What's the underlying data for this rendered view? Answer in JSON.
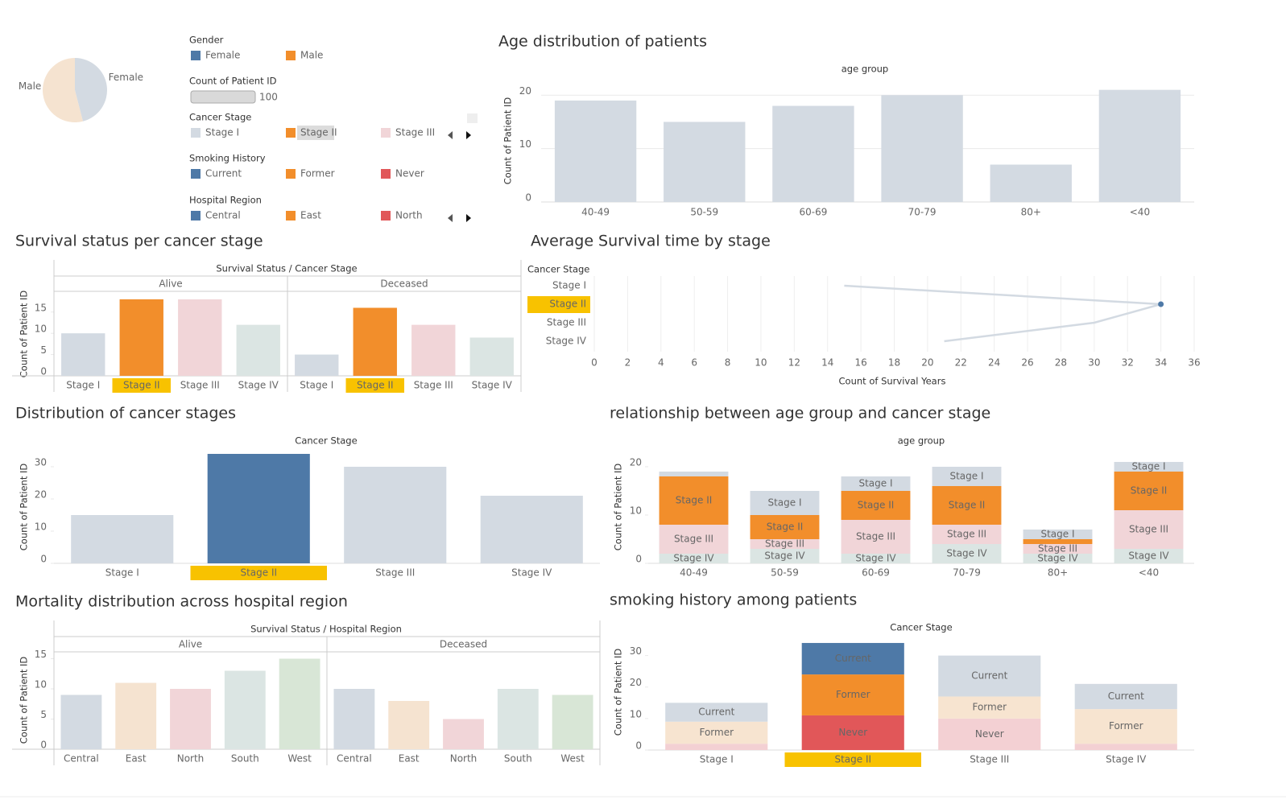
{
  "legends": [
    {
      "title": "Gender",
      "items": [
        {
          "name": "Female",
          "color": "#4e79a7"
        },
        {
          "name": "Male",
          "color": "#f28e2b"
        }
      ]
    },
    {
      "title": "Count of Patient ID",
      "value": 100
    },
    {
      "title": "Cancer Stage",
      "highlight_index": 1,
      "items": [
        {
          "name": "Stage I",
          "color": "#d3dae2"
        },
        {
          "name": "Stage II",
          "color": "#f28e2b"
        },
        {
          "name": "Stage III",
          "color": "#f1d5d8"
        }
      ]
    },
    {
      "title": "Smoking History",
      "items": [
        {
          "name": "Current",
          "color": "#4e79a7"
        },
        {
          "name": "Former",
          "color": "#f28e2b"
        },
        {
          "name": "Never",
          "color": "#e15759"
        }
      ]
    },
    {
      "title": "Hospital Region",
      "items": [
        {
          "name": "Central",
          "color": "#4e79a7"
        },
        {
          "name": "East",
          "color": "#f28e2b"
        },
        {
          "name": "North",
          "color": "#e15759"
        }
      ]
    }
  ],
  "chart_data": [
    {
      "type": "pie",
      "categories": [
        "Female",
        "Male"
      ],
      "values": [
        46,
        54
      ],
      "colors": [
        "#d3dae2",
        "#f5e3d0"
      ]
    },
    {
      "type": "bar",
      "title": "Age distribution of patients",
      "x_label": "age group",
      "y_label": "Count of Patient ID",
      "categories": [
        "40-49",
        "50-59",
        "60-69",
        "70-79",
        "80+",
        "<40"
      ],
      "values": [
        19,
        15,
        18,
        20,
        7,
        21
      ],
      "color": "#d3dae2",
      "ylim": [
        0,
        22
      ],
      "yticks": [
        0,
        10,
        20
      ],
      "grid": true
    },
    {
      "type": "bar",
      "title": "Survival status per cancer stage",
      "x_label": "Survival Status / Cancer Stage",
      "y_label": "Count of Patient ID",
      "categories": [
        "Stage I",
        "Stage II",
        "Stage III",
        "Stage IV"
      ],
      "series": [
        {
          "name": "Alive",
          "values": [
            10,
            18,
            18,
            12
          ]
        },
        {
          "name": "Deceased",
          "values": [
            5,
            16,
            12,
            9
          ]
        }
      ],
      "colors": [
        "#d3dae2",
        "#f28e2b",
        "#f1d5d8",
        "#dbe5e3"
      ],
      "highlight_index": 1,
      "highlight_color": "#f8c200",
      "ylim": [
        0,
        19.5
      ],
      "yticks": [
        0,
        5,
        10,
        15
      ],
      "grid": false
    },
    {
      "type": "line",
      "title": "Average Survival time by stage",
      "x_label": "Count of Survival Years",
      "y_label": "Cancer Stage",
      "categories": [
        "Stage I",
        "Stage II",
        "Stage III",
        "Stage IV"
      ],
      "values": [
        15,
        34,
        30,
        21
      ],
      "color": "#d3dae2",
      "point_color": "#4e79a7",
      "highlight_index": 1,
      "highlight_color": "#f8c200",
      "xlim": [
        0,
        36
      ],
      "xticks": [
        0,
        2,
        4,
        6,
        8,
        10,
        12,
        14,
        16,
        18,
        20,
        22,
        24,
        26,
        28,
        30,
        32,
        34,
        36
      ],
      "grid": true
    },
    {
      "type": "bar",
      "title": "Distribution of cancer stages",
      "x_label": "Cancer Stage",
      "y_label": "Count of Patient ID",
      "categories": [
        "Stage I",
        "Stage II",
        "Stage III",
        "Stage IV"
      ],
      "values": [
        15,
        34,
        30,
        21
      ],
      "colors": [
        "#d3dae2",
        "#4e79a7",
        "#d3dae2",
        "#d3dae2"
      ],
      "highlight_index": 1,
      "highlight_color": "#f8c200",
      "ylim": [
        0,
        35
      ],
      "yticks": [
        0,
        10,
        20,
        30
      ],
      "grid": false
    },
    {
      "type": "stacked_bar",
      "title": "relationship between age group and cancer stage",
      "x_label": "age group",
      "y_label": "Count of Patient ID",
      "categories": [
        "40-49",
        "50-59",
        "60-69",
        "70-79",
        "80+",
        "<40"
      ],
      "series": [
        {
          "name": "Stage IV",
          "color": "#dbe5e3",
          "label_color": "#ffffff",
          "values": [
            2,
            3,
            2,
            4,
            2,
            3
          ]
        },
        {
          "name": "Stage III",
          "color": "#f1d5d8",
          "label_color": "#ffffff",
          "values": [
            6,
            2,
            7,
            4,
            2,
            8
          ]
        },
        {
          "name": "Stage II",
          "color": "#f28e2b",
          "label_color": "#333333",
          "values": [
            10,
            5,
            6,
            8,
            1,
            8
          ]
        },
        {
          "name": "Stage I",
          "color": "#d3dae2",
          "label_color": "#ffffff",
          "values": [
            1,
            5,
            3,
            4,
            2,
            2
          ]
        }
      ],
      "ylim": [
        0,
        22
      ],
      "yticks": [
        0,
        10,
        20
      ],
      "grid": false
    },
    {
      "type": "bar",
      "title": "Mortality distribution across hospital region",
      "x_label": "Survival Status / Hospital Region",
      "y_label": "Count of Patient ID",
      "categories": [
        "Central",
        "East",
        "North",
        "South",
        "West"
      ],
      "series": [
        {
          "name": "Alive",
          "values": [
            9,
            11,
            10,
            13,
            15
          ]
        },
        {
          "name": "Deceased",
          "values": [
            10,
            8,
            5,
            10,
            9
          ]
        }
      ],
      "colors": [
        "#d3dae2",
        "#f5e3d0",
        "#f1d5d8",
        "#dbe5e3",
        "#d8e6d6"
      ],
      "ylim": [
        0,
        16
      ],
      "yticks": [
        0,
        5,
        10,
        15
      ],
      "grid": false
    },
    {
      "type": "stacked_bar",
      "title": "smoking history among patients",
      "x_label": "Cancer Stage",
      "y_label": "Count of Patient ID",
      "categories": [
        "Stage I",
        "Stage II",
        "Stage III",
        "Stage IV"
      ],
      "series": [
        {
          "name": "Never",
          "color": "#e15759",
          "faded_color": "#f3d0d3",
          "label_color": "#ffffff",
          "values": [
            2,
            11,
            10,
            2
          ]
        },
        {
          "name": "Former",
          "color": "#f28e2b",
          "faded_color": "#f7e4d0",
          "label_color": "#ffffff",
          "values": [
            7,
            13,
            7,
            11
          ]
        },
        {
          "name": "Current",
          "color": "#4e79a7",
          "faded_color": "#d3dae2",
          "label_color": "#ffffff",
          "values": [
            6,
            10,
            13,
            8
          ]
        }
      ],
      "highlight_index": 1,
      "highlight_color": "#f8c200",
      "ylim": [
        0,
        34.5
      ],
      "yticks": [
        0,
        10,
        20,
        30
      ],
      "grid": false
    }
  ]
}
